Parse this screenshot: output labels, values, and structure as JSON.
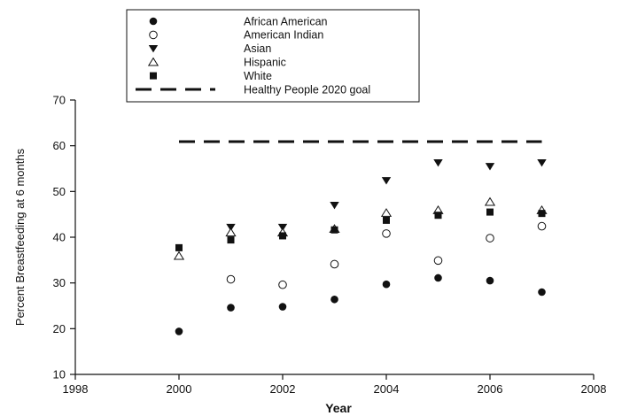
{
  "chart_data": {
    "type": "scatter",
    "title": "",
    "xlabel": "Year",
    "ylabel": "Percent Breastfeeding at 6 months",
    "xlim": [
      1998,
      2008
    ],
    "ylim": [
      10,
      70
    ],
    "x_ticks": [
      1998,
      2000,
      2002,
      2004,
      2006,
      2008
    ],
    "y_ticks": [
      10,
      20,
      30,
      40,
      50,
      60,
      70
    ],
    "grid": false,
    "legend_position": "top-left",
    "series": [
      {
        "name": "African American",
        "marker": "filled-circle",
        "x": [
          2000,
          2001,
          2002,
          2003,
          2004,
          2005,
          2006,
          2007
        ],
        "y": [
          19.4,
          24.6,
          24.8,
          26.4,
          29.7,
          31.1,
          30.5,
          28.0
        ]
      },
      {
        "name": "American Indian",
        "marker": "open-circle",
        "x": [
          2001,
          2002,
          2003,
          2004,
          2005,
          2006,
          2007
        ],
        "y": [
          30.8,
          29.6,
          34.1,
          40.8,
          34.9,
          39.8,
          42.4
        ]
      },
      {
        "name": "Asian",
        "marker": "filled-triangle-down",
        "x": [
          2001,
          2002,
          2003,
          2004,
          2005,
          2006,
          2007
        ],
        "y": [
          42.2,
          42.2,
          47.0,
          52.4,
          56.3,
          55.5,
          56.3
        ]
      },
      {
        "name": "Hispanic",
        "marker": "open-triangle-up",
        "x": [
          2000,
          2001,
          2002,
          2003,
          2004,
          2005,
          2006,
          2007
        ],
        "y": [
          35.9,
          41.0,
          41.0,
          41.8,
          45.3,
          45.9,
          47.7,
          45.9
        ]
      },
      {
        "name": "White",
        "marker": "filled-square",
        "x": [
          2000,
          2001,
          2002,
          2003,
          2004,
          2005,
          2006,
          2007
        ],
        "y": [
          37.7,
          39.4,
          40.3,
          41.6,
          43.7,
          44.8,
          45.5,
          45.2
        ]
      },
      {
        "name": "Healthy People 2020 goal",
        "marker": "dashed-line",
        "x": [
          2000,
          2007
        ],
        "y": [
          60.9,
          60.9
        ]
      }
    ]
  }
}
